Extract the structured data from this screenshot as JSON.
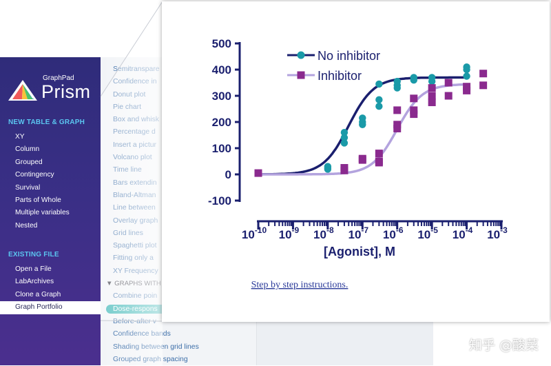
{
  "sidebar": {
    "logo_small": "GraphPad",
    "logo_big": "Prism",
    "section_new": "NEW TABLE & GRAPH",
    "new_items": [
      "XY",
      "Column",
      "Grouped",
      "Contingency",
      "Survival",
      "Parts of Whole",
      "Multiple variables",
      "Nested"
    ],
    "section_existing": "EXISTING FILE",
    "existing_items": [
      "Open a File",
      "LabArchives",
      "Clone a Graph",
      "Graph Portfolio"
    ],
    "selected": "Graph Portfolio"
  },
  "graph_list": {
    "items": [
      "Semitranspare",
      "Confidence in",
      "Donut plot",
      "Pie chart",
      "Box and whisk",
      "Percentage d",
      "Insert a pictur",
      "Volcano plot",
      "Time line",
      "Bars extendin",
      "Bland-Altman",
      "Line between",
      "Overlay graph",
      "Grid lines",
      "Spaghetti plot",
      "Fitting only a",
      "XY Frequency"
    ],
    "group_header": "GRAPHS WITH",
    "group_items": [
      "Combine poin",
      "Dose-respons",
      "Before-after v",
      "Confidence bands",
      "Shading between grid lines",
      "Grouped graph spacing"
    ],
    "selected": "Dose-respons"
  },
  "chart_data": {
    "type": "scatter",
    "xlabel": "[Agonist], M",
    "ylabel": "",
    "xscale": "log10",
    "xlim": [
      1e-10,
      0.001
    ],
    "ylim": [
      -100,
      500
    ],
    "xticks": [
      {
        "base": "10",
        "exp": "-10"
      },
      {
        "base": "10",
        "exp": "-9"
      },
      {
        "base": "10",
        "exp": "-8"
      },
      {
        "base": "10",
        "exp": "-7"
      },
      {
        "base": "10",
        "exp": "-6"
      },
      {
        "base": "10",
        "exp": "-5"
      },
      {
        "base": "10",
        "exp": "-4"
      },
      {
        "base": "10",
        "exp": "-3"
      }
    ],
    "yticks": [
      "-100",
      "0",
      "100",
      "200",
      "300",
      "400",
      "500"
    ],
    "ytick_values": [
      -100,
      0,
      100,
      200,
      300,
      400,
      500
    ],
    "legend_position": "top-left",
    "series": [
      {
        "name": "No inhibitor",
        "color": "#1a9aa8",
        "line_color": "#1a1f6e",
        "marker": "circle",
        "fit": {
          "bottom": 0,
          "top": 370,
          "log_ec50": -7.4,
          "hill": 1.2
        },
        "points": [
          [
            1e-10,
            5
          ],
          [
            1e-08,
            25
          ],
          [
            1e-08,
            20
          ],
          [
            1e-08,
            30
          ],
          [
            3e-08,
            160
          ],
          [
            3e-08,
            140
          ],
          [
            3e-08,
            120
          ],
          [
            1e-07,
            215
          ],
          [
            1e-07,
            200
          ],
          [
            1e-07,
            190
          ],
          [
            3e-07,
            345
          ],
          [
            3e-07,
            285
          ],
          [
            3e-07,
            260
          ],
          [
            1e-06,
            355
          ],
          [
            1e-06,
            340
          ],
          [
            1e-06,
            330
          ],
          [
            3e-06,
            370
          ],
          [
            3e-06,
            360
          ],
          [
            1e-05,
            370
          ],
          [
            1e-05,
            355
          ],
          [
            0.0001,
            410
          ],
          [
            0.0001,
            400
          ],
          [
            0.0001,
            375
          ]
        ]
      },
      {
        "name": "Inhibitor",
        "color": "#8a2a8e",
        "line_color": "#b3a3de",
        "marker": "square",
        "fit": {
          "bottom": 0,
          "top": 345,
          "log_ec50": -6.0,
          "hill": 1.2
        },
        "points": [
          [
            1e-10,
            5
          ],
          [
            3e-08,
            25
          ],
          [
            3e-08,
            15
          ],
          [
            1e-07,
            60
          ],
          [
            1e-07,
            55
          ],
          [
            3e-07,
            80
          ],
          [
            3e-07,
            50
          ],
          [
            3e-07,
            45
          ],
          [
            1e-06,
            245
          ],
          [
            1e-06,
            190
          ],
          [
            1e-06,
            175
          ],
          [
            3e-06,
            290
          ],
          [
            3e-06,
            245
          ],
          [
            3e-06,
            230
          ],
          [
            1e-05,
            330
          ],
          [
            1e-05,
            300
          ],
          [
            1e-05,
            275
          ],
          [
            3e-05,
            350
          ],
          [
            3e-05,
            300
          ],
          [
            0.0001,
            335
          ],
          [
            0.0001,
            320
          ],
          [
            0.0003,
            385
          ],
          [
            0.0003,
            340
          ]
        ]
      }
    ]
  },
  "link_text": "Step by step instructions.",
  "watermark": "知乎 @酸菜"
}
